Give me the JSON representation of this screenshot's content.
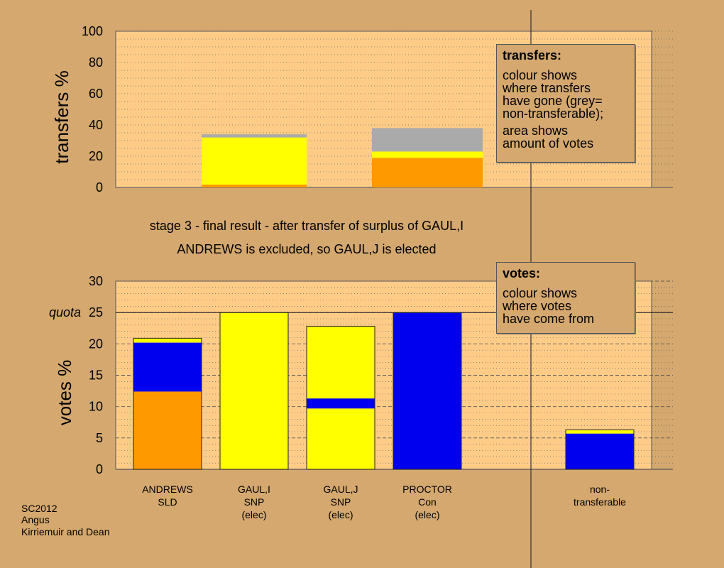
{
  "chart_data": [
    {
      "type": "bar",
      "stacked": true,
      "ylabel": "transfers %",
      "ylim": [
        0,
        100
      ],
      "yticks": [
        0,
        20,
        40,
        60,
        80,
        100
      ],
      "grid": true,
      "bars": [
        {
          "segments": [
            {
              "color": "#ff9900",
              "from": 0,
              "to": 1.8
            },
            {
              "color": "#ffff00",
              "from": 1.8,
              "to": 32
            },
            {
              "color": "#aaaaaa",
              "from": 32,
              "to": 34
            }
          ]
        },
        {
          "segments": [
            {
              "color": "#ff9900",
              "from": 0,
              "to": 19
            },
            {
              "color": "#ffff00",
              "from": 19,
              "to": 23
            },
            {
              "color": "#aaaaaa",
              "from": 23,
              "to": 38
            }
          ]
        }
      ],
      "legend_box": {
        "title": "transfers:",
        "paragraphs": [
          "colour shows\nwhere transfers\nhave gone (grey=\nnon-transferable);",
          "area shows\namount of votes"
        ]
      }
    },
    {
      "type": "bar",
      "stacked": true,
      "ylabel": "votes %",
      "ylim": [
        0,
        30
      ],
      "yticks": [
        0,
        5,
        10,
        15,
        20,
        25,
        30
      ],
      "quota_label": "quota",
      "quota": 25,
      "grid": true,
      "categories": [
        [
          "ANDREWS",
          "SLD"
        ],
        [
          "GAUL,I",
          "SNP",
          "(elec)"
        ],
        [
          "GAUL,J",
          "SNP",
          "(elec)"
        ],
        [
          "PROCTOR",
          "Con",
          "(elec)"
        ],
        [
          "non-",
          "transferable"
        ]
      ],
      "bars": [
        {
          "segments": [
            {
              "color": "#ff9900",
              "from": 0,
              "to": 12.4
            },
            {
              "color": "#0000ee",
              "from": 12.4,
              "to": 20.2
            },
            {
              "color": "#ffff00",
              "from": 20.2,
              "to": 20.9
            }
          ]
        },
        {
          "segments": [
            {
              "color": "#ffff00",
              "from": 0,
              "to": 25
            }
          ]
        },
        {
          "segments": [
            {
              "color": "#ffff00",
              "from": 0,
              "to": 9.7
            },
            {
              "color": "#0000ee",
              "from": 9.7,
              "to": 11.3
            },
            {
              "color": "#ffff00",
              "from": 11.3,
              "to": 22.8
            }
          ]
        },
        {
          "segments": [
            {
              "color": "#0000ee",
              "from": 0,
              "to": 25
            }
          ]
        },
        {
          "segments": [
            {
              "color": "#0000ee",
              "from": 0,
              "to": 5.7
            },
            {
              "color": "#ffff00",
              "from": 5.7,
              "to": 6.3
            }
          ]
        }
      ],
      "legend_box": {
        "title": "votes:",
        "paragraphs": [
          "colour shows\nwhere votes\nhave come from"
        ]
      }
    }
  ],
  "stage_message": {
    "line1": "stage 3 - final result - after transfer of surplus of GAUL,I",
    "line2": "ANDREWS is excluded, so GAUL,J is elected"
  },
  "footer": {
    "lines": [
      "SC2012",
      "Angus",
      "Kirriemuir and Dean"
    ]
  }
}
